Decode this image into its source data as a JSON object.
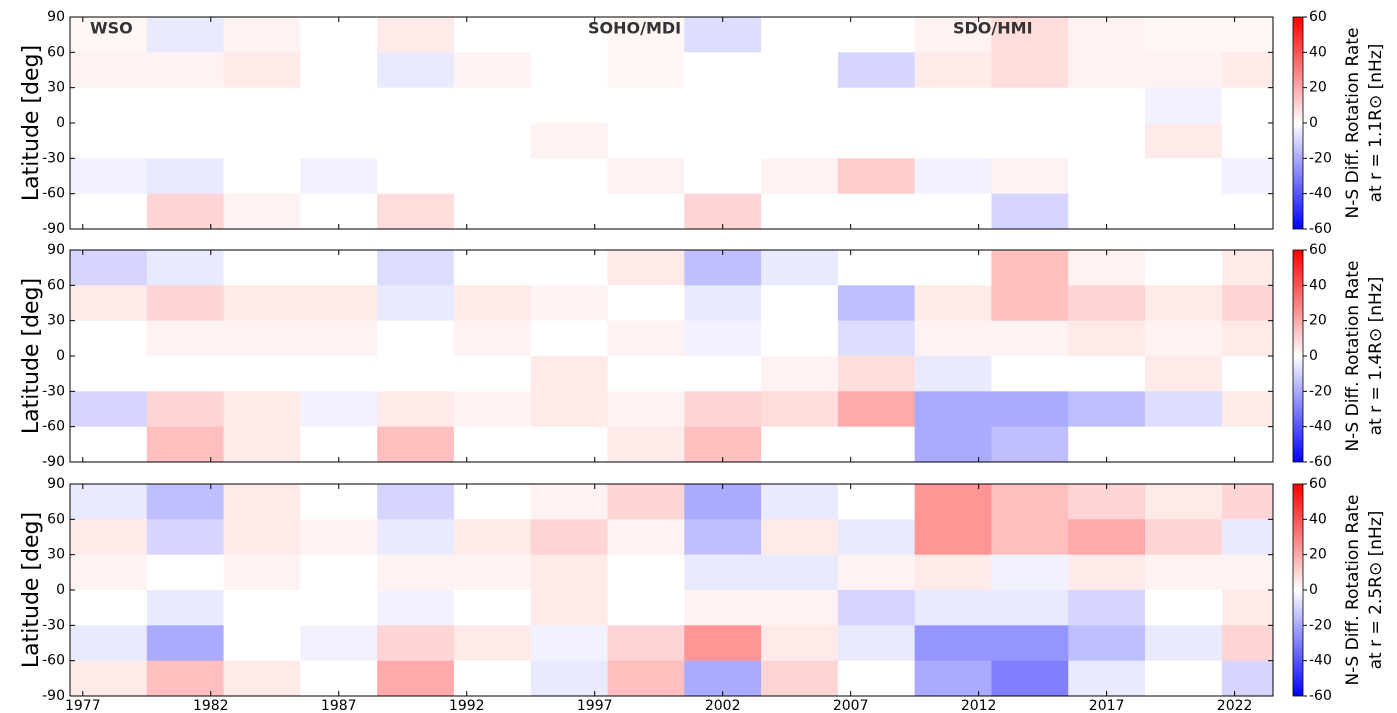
{
  "chart_data": [
    {
      "type": "heatmap",
      "ylabel": "Latitude [deg]",
      "colorbar_label": [
        "N-S Diff. Rotation Rate",
        "at r = 1.1R⊙ [nHz]"
      ],
      "annotations": [
        "WSO",
        "SOHO/MDI",
        "SDO/HMI"
      ],
      "colormap": "bwr",
      "x_edges": [
        1976.5,
        1979.5,
        1982.5,
        1985.5,
        1988.5,
        1991.5,
        1994.5,
        1997.5,
        2000.5,
        2003.5,
        2006.5,
        2009.5,
        2012.5,
        2015.5,
        2018.5,
        2021.5,
        2023.5
      ],
      "y_edges": [
        90,
        60,
        30,
        0,
        -30,
        -60,
        -90
      ],
      "z": [
        [
          2,
          -5,
          3,
          0,
          5,
          0,
          0,
          2,
          -8,
          0,
          0,
          3,
          8,
          3,
          2,
          2
        ],
        [
          3,
          3,
          5,
          0,
          -5,
          3,
          0,
          2,
          0,
          0,
          -10,
          5,
          8,
          3,
          3,
          5
        ],
        [
          0,
          0,
          0,
          0,
          0,
          0,
          0,
          0,
          0,
          0,
          0,
          0,
          0,
          0,
          -3,
          0
        ],
        [
          0,
          0,
          0,
          0,
          0,
          0,
          3,
          0,
          0,
          0,
          0,
          0,
          0,
          0,
          5,
          0
        ],
        [
          -3,
          -5,
          0,
          -3,
          0,
          0,
          0,
          3,
          0,
          3,
          12,
          -3,
          3,
          0,
          0,
          -3
        ],
        [
          0,
          10,
          3,
          0,
          8,
          0,
          0,
          0,
          10,
          0,
          0,
          0,
          -10,
          0,
          0,
          0
        ]
      ],
      "xlim": [
        1976.5,
        2023.5
      ],
      "ylim": [
        -90,
        90
      ],
      "yticks": [
        -90,
        -60,
        -30,
        0,
        30,
        60,
        90
      ],
      "zlim": [
        -60,
        60
      ],
      "zticks": [
        -60,
        -40,
        -20,
        0,
        20,
        40,
        60
      ]
    },
    {
      "type": "heatmap",
      "ylabel": "Latitude [deg]",
      "colorbar_label": [
        "N-S Diff. Rotation Rate",
        "at r = 1.4R⊙ [nHz]"
      ],
      "colormap": "bwr",
      "x_edges": [
        1976.5,
        1979.5,
        1982.5,
        1985.5,
        1988.5,
        1991.5,
        1994.5,
        1997.5,
        2000.5,
        2003.5,
        2006.5,
        2009.5,
        2012.5,
        2015.5,
        2018.5,
        2021.5,
        2023.5
      ],
      "y_edges": [
        90,
        60,
        30,
        0,
        -30,
        -60,
        -90
      ],
      "z": [
        [
          -10,
          -5,
          0,
          0,
          -8,
          0,
          0,
          5,
          -15,
          -5,
          0,
          0,
          15,
          3,
          0,
          5
        ],
        [
          5,
          10,
          5,
          5,
          -5,
          5,
          3,
          0,
          -5,
          0,
          -15,
          5,
          15,
          10,
          5,
          10
        ],
        [
          0,
          3,
          3,
          3,
          0,
          3,
          0,
          3,
          -3,
          0,
          -8,
          3,
          3,
          5,
          3,
          5
        ],
        [
          0,
          0,
          0,
          0,
          0,
          0,
          5,
          0,
          0,
          3,
          8,
          -5,
          0,
          0,
          5,
          0
        ],
        [
          -10,
          10,
          5,
          -3,
          5,
          3,
          5,
          3,
          10,
          8,
          20,
          -20,
          -20,
          -15,
          -8,
          5
        ],
        [
          0,
          15,
          5,
          0,
          15,
          0,
          0,
          5,
          15,
          0,
          0,
          -20,
          -15,
          0,
          0,
          0
        ]
      ],
      "xlim": [
        1976.5,
        2023.5
      ],
      "ylim": [
        -90,
        90
      ],
      "yticks": [
        -90,
        -60,
        -30,
        0,
        30,
        60,
        90
      ],
      "zlim": [
        -60,
        60
      ],
      "zticks": [
        -60,
        -40,
        -20,
        0,
        20,
        40,
        60
      ]
    },
    {
      "type": "heatmap",
      "ylabel": "Latitude [deg]",
      "colorbar_label": [
        "N-S Diff. Rotation Rate",
        "at r = 2.5R⊙ [nHz]"
      ],
      "colormap": "bwr",
      "x_edges": [
        1976.5,
        1979.5,
        1982.5,
        1985.5,
        1988.5,
        1991.5,
        1994.5,
        1997.5,
        2000.5,
        2003.5,
        2006.5,
        2009.5,
        2012.5,
        2015.5,
        2018.5,
        2021.5,
        2023.5
      ],
      "y_edges": [
        90,
        60,
        30,
        0,
        -30,
        -60,
        -90
      ],
      "z": [
        [
          -5,
          -15,
          5,
          0,
          -10,
          0,
          3,
          10,
          -20,
          -5,
          0,
          25,
          15,
          10,
          5,
          10
        ],
        [
          5,
          -10,
          5,
          3,
          -5,
          5,
          10,
          3,
          -15,
          5,
          -5,
          25,
          15,
          20,
          10,
          -5
        ],
        [
          3,
          0,
          3,
          0,
          3,
          3,
          5,
          0,
          -5,
          -5,
          3,
          5,
          -3,
          5,
          3,
          3
        ],
        [
          0,
          -5,
          0,
          0,
          -3,
          0,
          5,
          0,
          3,
          3,
          -10,
          -5,
          -5,
          -10,
          0,
          5
        ],
        [
          -5,
          -20,
          0,
          -3,
          10,
          5,
          -3,
          10,
          25,
          5,
          -5,
          -25,
          -25,
          -15,
          -5,
          10
        ],
        [
          5,
          15,
          5,
          0,
          20,
          0,
          -5,
          15,
          -20,
          10,
          0,
          -20,
          -30,
          -5,
          0,
          -10
        ]
      ],
      "xlim": [
        1976.5,
        2023.5
      ],
      "ylim": [
        -90,
        90
      ],
      "yticks": [
        -90,
        -60,
        -30,
        0,
        30,
        60,
        90
      ],
      "xticks": [
        1977,
        1982,
        1987,
        1992,
        1997,
        2002,
        2007,
        2012,
        2017,
        2022
      ],
      "zlim": [
        -60,
        60
      ],
      "zticks": [
        -60,
        -40,
        -20,
        0,
        20,
        40,
        60
      ]
    }
  ]
}
